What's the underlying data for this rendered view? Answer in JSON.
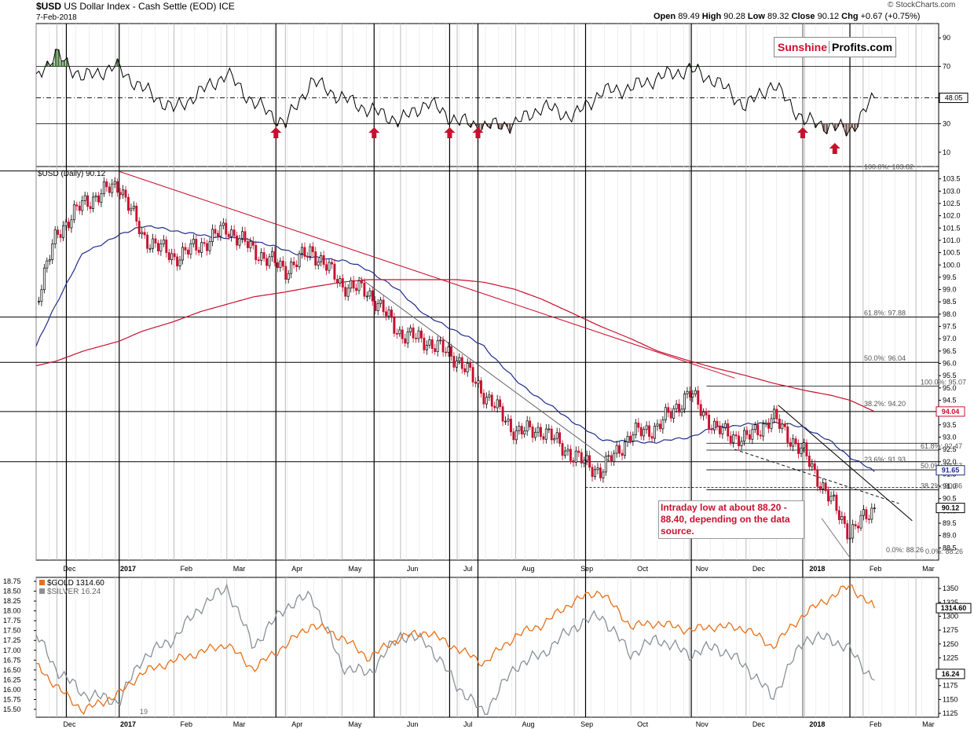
{
  "header": {
    "symbol": "$USD",
    "name": "US Dollar Index - Cash Settle (EOD)",
    "exchange": "ICE",
    "date": "7-Feb-2018",
    "open_label": "Open",
    "open": "89.49",
    "high_label": "High",
    "high": "90.28",
    "low_label": "Low",
    "low": "89.32",
    "close_label": "Close",
    "close": "90.12",
    "chg_label": "Chg",
    "chg": "+0.67 (+0.75%)",
    "watermark": "© StockCharts.com"
  },
  "logo": {
    "part1": "Sunshine",
    "part2": "Profits.com"
  },
  "annotation": "Intraday low at about 88.20 - 88.40, depending on the data source.",
  "colors": {
    "up": "#000000",
    "down": "#c8102e",
    "ma50": "#1f2d8a",
    "ma200": "#c8102e",
    "gold": "#e8701a",
    "silver": "#8a9099",
    "arrow": "#c8102e",
    "rsi_over": "#4a7a40",
    "rsi_under": "#7a5a52"
  },
  "chart_data": [
    {
      "type": "line",
      "panel": "rsi",
      "y_ticks": [
        90,
        70,
        30,
        10
      ],
      "ylim": [
        0,
        100
      ],
      "reference_lines": [
        70,
        48.05,
        30
      ],
      "last_value_label": "48.05",
      "x": [
        "2016-11-20",
        "2016-12-01",
        "2016-12-15",
        "2017-01-01",
        "2017-01-15",
        "2017-02-01",
        "2017-02-15",
        "2017-03-01",
        "2017-03-15",
        "2017-04-01",
        "2017-04-15",
        "2017-05-01",
        "2017-05-15",
        "2017-06-01",
        "2017-06-15",
        "2017-07-01",
        "2017-07-15",
        "2017-08-01",
        "2017-08-15",
        "2017-09-01",
        "2017-09-15",
        "2017-10-01",
        "2017-10-15",
        "2017-11-01",
        "2017-11-15",
        "2017-12-01",
        "2017-12-15",
        "2018-01-01",
        "2018-01-15",
        "2018-01-25",
        "2018-02-07"
      ],
      "values": [
        65,
        78,
        62,
        70,
        55,
        40,
        52,
        65,
        45,
        30,
        60,
        48,
        40,
        32,
        45,
        32,
        28,
        30,
        42,
        35,
        52,
        55,
        62,
        68,
        60,
        42,
        58,
        32,
        28,
        25,
        48
      ],
      "arrows": [
        "2017-03-27",
        "2017-05-18",
        "2017-06-27",
        "2017-07-12",
        "2017-12-31",
        "2018-01-17"
      ]
    },
    {
      "type": "candlestick",
      "panel": "price",
      "legend": "$USD (Daily) 90.12",
      "ylim": [
        88.0,
        104.0
      ],
      "y_ticks": [
        88.5,
        89.0,
        89.5,
        90.0,
        90.5,
        91.0,
        91.5,
        92.0,
        92.5,
        93.0,
        93.5,
        94.0,
        94.5,
        95.0,
        95.5,
        96.0,
        96.5,
        97.0,
        97.5,
        98.0,
        98.5,
        99.0,
        99.5,
        100.0,
        100.5,
        101.0,
        101.5,
        102.0,
        102.5,
        103.0,
        103.5
      ],
      "x": [
        "2016-11-20",
        "2016-12-01",
        "2016-12-15",
        "2017-01-03",
        "2017-01-15",
        "2017-02-01",
        "2017-02-15",
        "2017-03-01",
        "2017-03-15",
        "2017-04-01",
        "2017-04-15",
        "2017-05-01",
        "2017-05-15",
        "2017-06-01",
        "2017-06-15",
        "2017-07-01",
        "2017-07-15",
        "2017-08-01",
        "2017-08-15",
        "2017-09-01",
        "2017-09-15",
        "2017-10-01",
        "2017-10-15",
        "2017-11-01",
        "2017-11-15",
        "2017-12-01",
        "2017-12-15",
        "2018-01-01",
        "2018-01-15",
        "2018-01-25",
        "2018-02-07"
      ],
      "close": [
        98.5,
        101.3,
        102.5,
        103.3,
        101.2,
        100.3,
        100.8,
        101.5,
        100.6,
        99.8,
        100.6,
        99.2,
        98.9,
        97.2,
        96.9,
        96.2,
        94.8,
        93.2,
        93.3,
        92.2,
        91.6,
        93.1,
        93.4,
        94.8,
        93.3,
        92.9,
        93.8,
        92.3,
        90.4,
        89.1,
        90.12
      ],
      "ma50": [
        96.7,
        98.5,
        100.5,
        101.2,
        101.6,
        101.4,
        101.2,
        101.1,
        101.0,
        100.6,
        100.3,
        100.2,
        99.8,
        98.9,
        97.9,
        97.3,
        96.7,
        95.3,
        94.5,
        93.6,
        92.9,
        92.8,
        92.8,
        93.0,
        93.4,
        93.5,
        93.6,
        93.4,
        92.8,
        92.2,
        91.6
      ],
      "ma200": [
        95.9,
        96.1,
        96.5,
        96.9,
        97.3,
        97.7,
        98.1,
        98.4,
        98.7,
        98.9,
        99.1,
        99.3,
        99.4,
        99.4,
        99.4,
        99.4,
        99.3,
        99.0,
        98.6,
        98.0,
        97.5,
        97.0,
        96.5,
        96.1,
        95.8,
        95.5,
        95.2,
        94.9,
        94.7,
        94.5,
        94.04
      ],
      "fib_labels": [
        {
          "text": "100.0%: 103.82",
          "y": 103.82
        },
        {
          "text": "61.8%: 97.88",
          "y": 97.88
        },
        {
          "text": "50.0%: 96.04",
          "y": 96.04
        },
        {
          "text": "100.0%: 95.07",
          "y": 95.07
        },
        {
          "text": "38.2%: 94.20",
          "y": 94.2
        },
        {
          "text": "61.8%: 92.47",
          "y": 92.47
        },
        {
          "text": "23.6%: 91.93",
          "y": 91.93
        },
        {
          "text": "50.0%: 91.67",
          "y": 91.67
        },
        {
          "text": "38.2%: 90.86",
          "y": 90.86
        },
        {
          "text": "0.0%: 88.26",
          "y": 88.26
        },
        {
          "text": "0.0%: 88.26",
          "y": 88.26
        }
      ],
      "price_flags": [
        {
          "text": "94.04",
          "y": 94.04,
          "color": "#c8102e"
        },
        {
          "text": "91.65",
          "y": 91.65,
          "color": "#1f2d8a"
        },
        {
          "text": "90.12",
          "y": 90.12,
          "color": "#000000"
        }
      ],
      "x_tick_labels": [
        "Dec",
        "2017",
        "Feb",
        "Mar",
        "Apr",
        "May",
        "Jun",
        "Jul",
        "Aug",
        "Sep",
        "Oct",
        "Nov",
        "Dec",
        "2018",
        "Feb",
        "Mar"
      ],
      "x_tick_dates": [
        "2016-12-01",
        "2017-01-01",
        "2017-02-01",
        "2017-03-01",
        "2017-04-01",
        "2017-05-01",
        "2017-06-01",
        "2017-07-01",
        "2017-08-01",
        "2017-09-01",
        "2017-10-01",
        "2017-11-01",
        "2017-12-01",
        "2018-01-01",
        "2018-02-01",
        "2018-03-01"
      ]
    },
    {
      "type": "line",
      "panel": "gold-silver",
      "x": [
        "2016-11-20",
        "2016-12-01",
        "2016-12-15",
        "2017-01-03",
        "2017-01-15",
        "2017-02-01",
        "2017-02-15",
        "2017-03-01",
        "2017-03-15",
        "2017-04-01",
        "2017-04-15",
        "2017-05-01",
        "2017-05-15",
        "2017-06-01",
        "2017-06-15",
        "2017-07-01",
        "2017-07-15",
        "2017-08-01",
        "2017-08-15",
        "2017-09-01",
        "2017-09-15",
        "2017-10-01",
        "2017-10-15",
        "2017-11-01",
        "2017-11-15",
        "2017-12-01",
        "2017-12-15",
        "2018-01-01",
        "2018-01-15",
        "2018-01-25",
        "2018-02-07"
      ],
      "series": [
        {
          "name": "$GOLD 1314.60",
          "axis": "right",
          "values": [
            1215,
            1172,
            1130,
            1160,
            1198,
            1220,
            1235,
            1250,
            1205,
            1248,
            1285,
            1262,
            1225,
            1262,
            1272,
            1242,
            1215,
            1265,
            1285,
            1328,
            1345,
            1282,
            1288,
            1275,
            1282,
            1278,
            1245,
            1305,
            1335,
            1355,
            1314.6
          ]
        },
        {
          "name": "$SILVER 16.24",
          "axis": "left",
          "values": [
            17.4,
            16.5,
            15.9,
            15.7,
            16.8,
            17.3,
            18.1,
            18.6,
            17.1,
            18.1,
            18.4,
            16.6,
            16.4,
            17.4,
            17.2,
            16.1,
            15.4,
            16.6,
            16.9,
            17.6,
            17.9,
            16.9,
            17.3,
            16.9,
            17.1,
            16.6,
            15.8,
            17.3,
            17.3,
            17.0,
            16.24
          ]
        }
      ],
      "left_ticks": [
        18.75,
        18.5,
        18.25,
        18.0,
        17.75,
        17.5,
        17.25,
        17.0,
        16.75,
        16.5,
        16.25,
        16.0,
        15.75,
        15.5
      ],
      "left_ylim": [
        15.3,
        18.85
      ],
      "right_ticks": [
        1350,
        1325,
        1300,
        1275,
        1250,
        1225,
        1200,
        1175,
        1150,
        1125
      ],
      "right_ylim": [
        1118,
        1370
      ],
      "marker_text": "19",
      "price_flags": [
        {
          "text": "1314.60",
          "y": 1314.6
        },
        {
          "text": "16.24",
          "y": 16.24
        }
      ],
      "x_tick_labels": [
        "Dec",
        "2017",
        "Feb",
        "Mar",
        "Apr",
        "May",
        "Jun",
        "Jul",
        "Aug",
        "Sep",
        "Oct",
        "Nov",
        "Dec",
        "2018",
        "Feb",
        "Mar"
      ]
    }
  ]
}
